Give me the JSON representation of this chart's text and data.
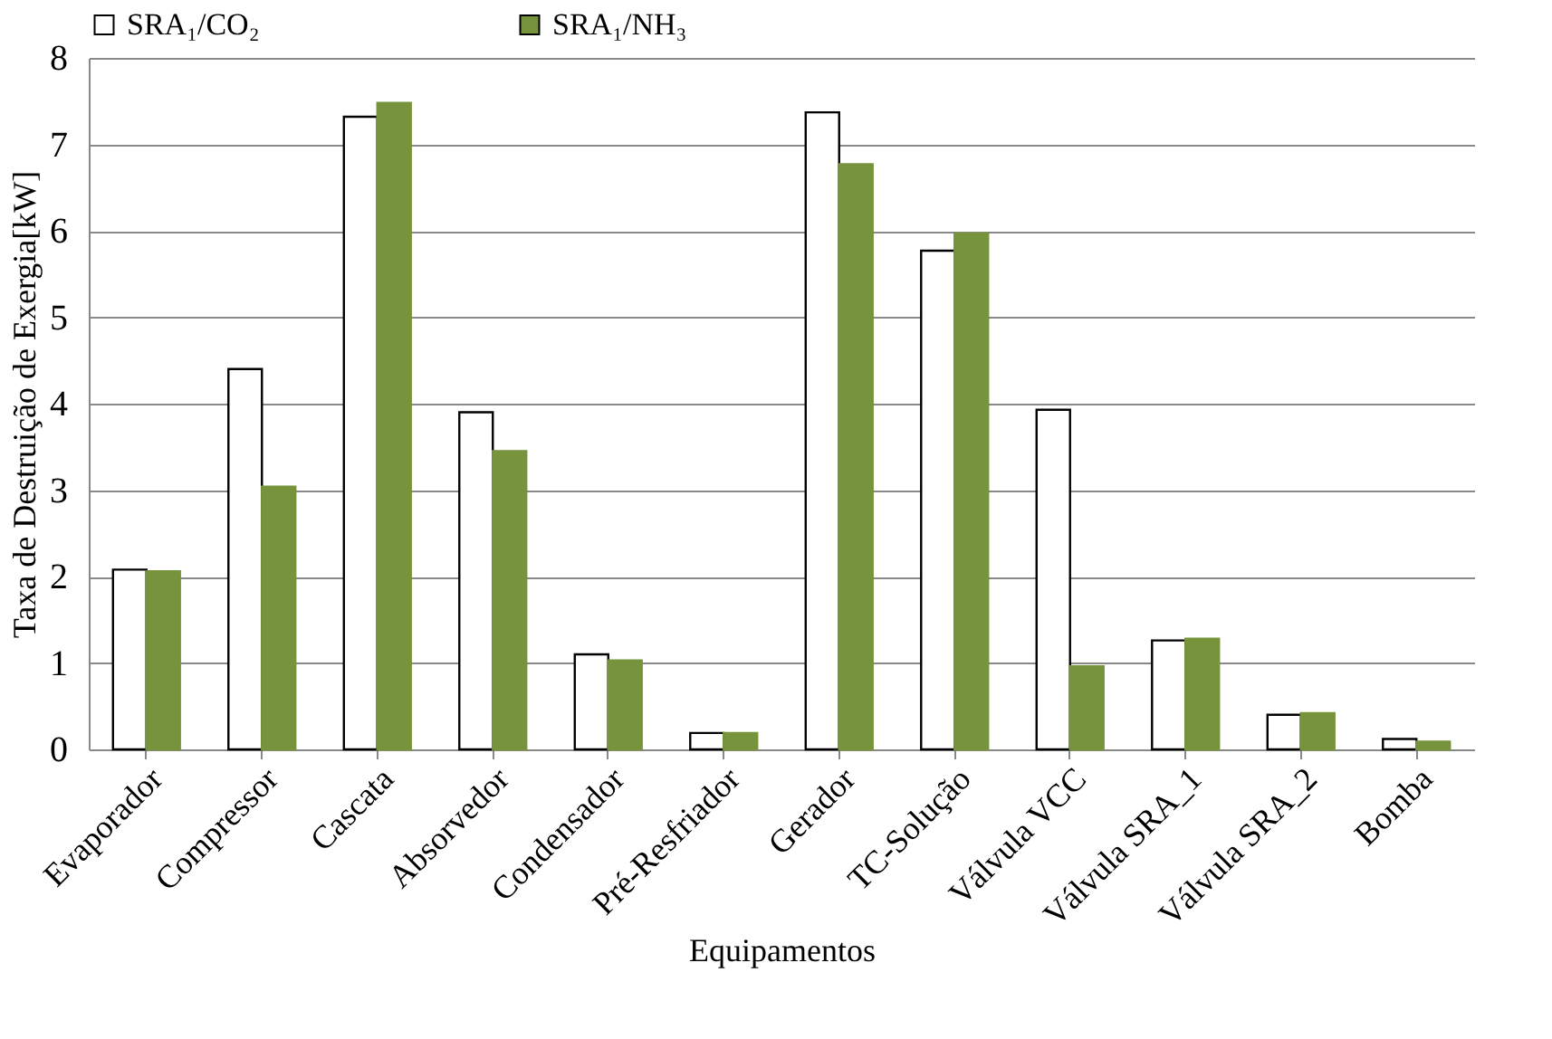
{
  "chart_data": {
    "type": "bar",
    "xlabel": "Equipamentos",
    "ylabel": "Taxa de Destruição de Exergia[kW]",
    "categories": [
      "Evaporador",
      "Compressor",
      "Cascata",
      "Absorvedor",
      "Condensador",
      "Pré-Resfriador",
      "Gerador",
      "TC-Solução",
      "Válvula VCC",
      "Válvula SRA_1",
      "Válvula SRA_2",
      "Bomba"
    ],
    "series": [
      {
        "name": "SRA₁/CO₂",
        "color": "#ffffff",
        "values": [
          2.08,
          4.4,
          7.32,
          3.9,
          1.1,
          0.19,
          7.37,
          5.77,
          3.93,
          1.26,
          0.4,
          0.12
        ]
      },
      {
        "name": "SRA₁/NH₃",
        "color": "#77933c",
        "values": [
          2.06,
          3.04,
          7.48,
          3.45,
          1.03,
          0.19,
          6.77,
          5.97,
          0.96,
          1.28,
          0.42,
          0.09
        ]
      }
    ],
    "ylim": [
      0,
      8
    ],
    "yticks": [
      0,
      1,
      2,
      3,
      4,
      5,
      6,
      7,
      8
    ],
    "grid": "y",
    "legend": "top"
  }
}
